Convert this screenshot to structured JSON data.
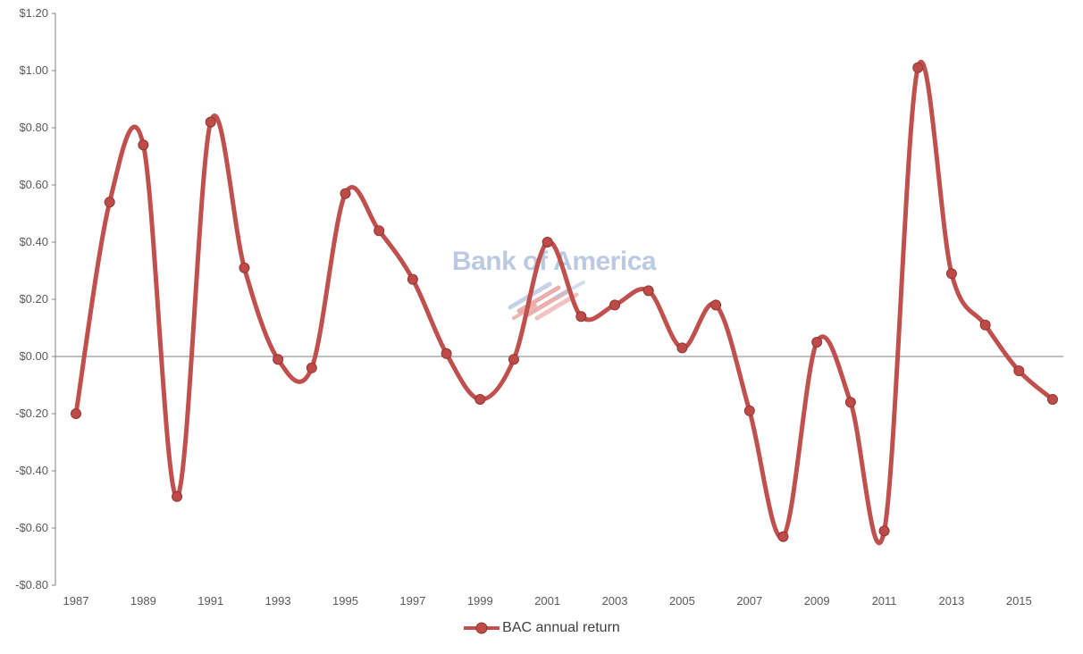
{
  "chart_data": {
    "type": "line",
    "x": [
      1987,
      1988,
      1989,
      1990,
      1991,
      1992,
      1993,
      1994,
      1995,
      1996,
      1997,
      1998,
      1999,
      2000,
      2001,
      2002,
      2003,
      2004,
      2005,
      2006,
      2007,
      2008,
      2009,
      2010,
      2011,
      2012,
      2013,
      2014,
      2015,
      2016
    ],
    "series": [
      {
        "name": "BAC annual return",
        "values": [
          -0.2,
          0.54,
          0.74,
          -0.49,
          0.82,
          0.31,
          -0.01,
          -0.04,
          0.57,
          0.44,
          0.27,
          0.01,
          -0.15,
          -0.01,
          0.4,
          0.14,
          0.18,
          0.23,
          0.03,
          0.18,
          -0.19,
          -0.63,
          0.05,
          -0.16,
          -0.61,
          1.01,
          0.29,
          0.11,
          -0.05,
          -0.15
        ]
      }
    ],
    "x_tick_labels": [
      "1987",
      "1989",
      "1991",
      "1993",
      "1995",
      "1997",
      "1999",
      "2001",
      "2003",
      "2005",
      "2007",
      "2009",
      "2011",
      "2013",
      "2015"
    ],
    "y_tick_values": [
      1.2,
      1.0,
      0.8,
      0.6,
      0.4,
      0.2,
      0.0,
      -0.2,
      -0.4,
      -0.6,
      -0.8
    ],
    "y_tick_labels": [
      "$1.20",
      "$1.00",
      "$0.80",
      "$0.60",
      "$0.40",
      "$0.20",
      "$0.00",
      "-$0.20",
      "-$0.40",
      "-$0.60",
      "-$0.80"
    ],
    "ylim": [
      -0.8,
      1.2
    ],
    "grid": "zero-line-only",
    "legend_position": "bottom",
    "smooth": true,
    "watermark": "Bank of America"
  },
  "colors": {
    "line": "#C0504D",
    "marker_fill": "#BE4B48",
    "marker_border": "#8C3836",
    "axis": "#808080",
    "zero_line": "#7F7F7F",
    "tick_text": "#595959",
    "legend_text": "#404040",
    "watermark_text": "#B7C7E0",
    "watermark_flag_red": "#DD7876",
    "background": "#FFFFFF"
  }
}
